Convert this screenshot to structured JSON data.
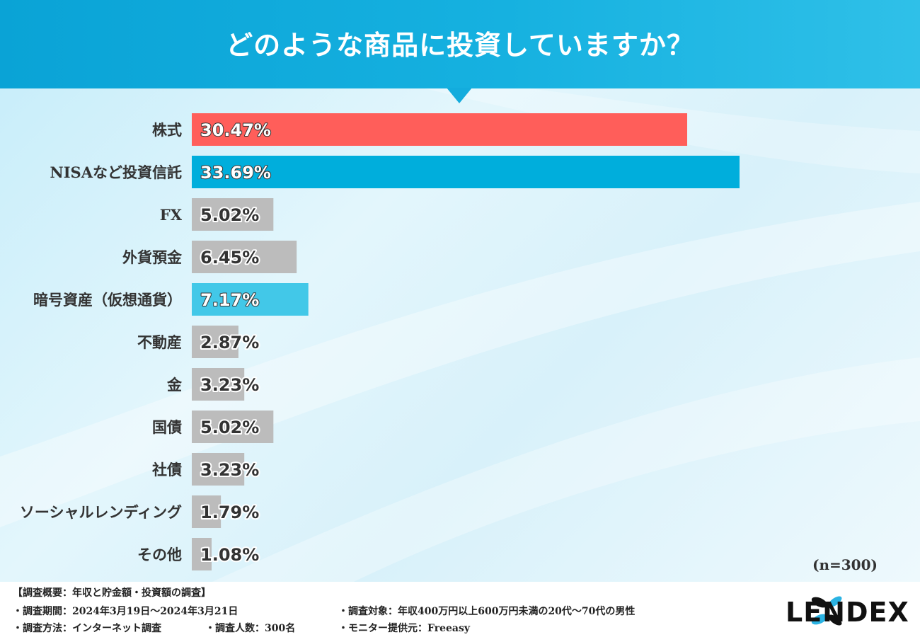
{
  "title": "どのような商品に投資していますか？",
  "sample_size": "(n=300)",
  "colors": {
    "header": "#0aa3d6",
    "highlight_red": "#ff5e5a",
    "highlight_blue": "#00aedc",
    "highlight_cyan": "#42c8e8",
    "neutral": "#bcbcbc"
  },
  "chart_data": {
    "type": "bar",
    "orientation": "horizontal",
    "categories": [
      "株式",
      "NISAなど投資信託",
      "FX",
      "外貨預金",
      "暗号資産（仮想通貨）",
      "不動産",
      "金",
      "国債",
      "社債",
      "ソーシャルレンディング",
      "その他"
    ],
    "values": [
      30.47,
      33.69,
      5.02,
      6.45,
      7.17,
      2.87,
      3.23,
      5.02,
      3.23,
      1.79,
      1.08
    ],
    "value_labels": [
      "30.47%",
      "33.69%",
      "5.02%",
      "6.45%",
      "7.17%",
      "2.87%",
      "3.23%",
      "5.02%",
      "3.23%",
      "1.79%",
      "1.08%"
    ],
    "bar_colors": [
      "#ff5e5a",
      "#00aedc",
      "#bcbcbc",
      "#bcbcbc",
      "#42c8e8",
      "#bcbcbc",
      "#bcbcbc",
      "#bcbcbc",
      "#bcbcbc",
      "#bcbcbc",
      "#bcbcbc"
    ],
    "label_styles": [
      "light",
      "light",
      "dark",
      "dark",
      "light",
      "dark",
      "dark",
      "dark",
      "dark",
      "dark",
      "dark"
    ],
    "unit": "%",
    "grid": false
  },
  "footer": {
    "heading": "【調査概要：年収と貯金額・投資額の調査】",
    "period": "・調査期間：2024年3月19日〜2024年3月21日",
    "method": "・調査方法：インターネット調査",
    "respondents": "・調査人数：300名",
    "target": "・調査対象：年収400万円以上600万円未満の20代〜70代の男性",
    "provider": "・モニター提供元：Freeasy",
    "logo": "LENDEX"
  }
}
